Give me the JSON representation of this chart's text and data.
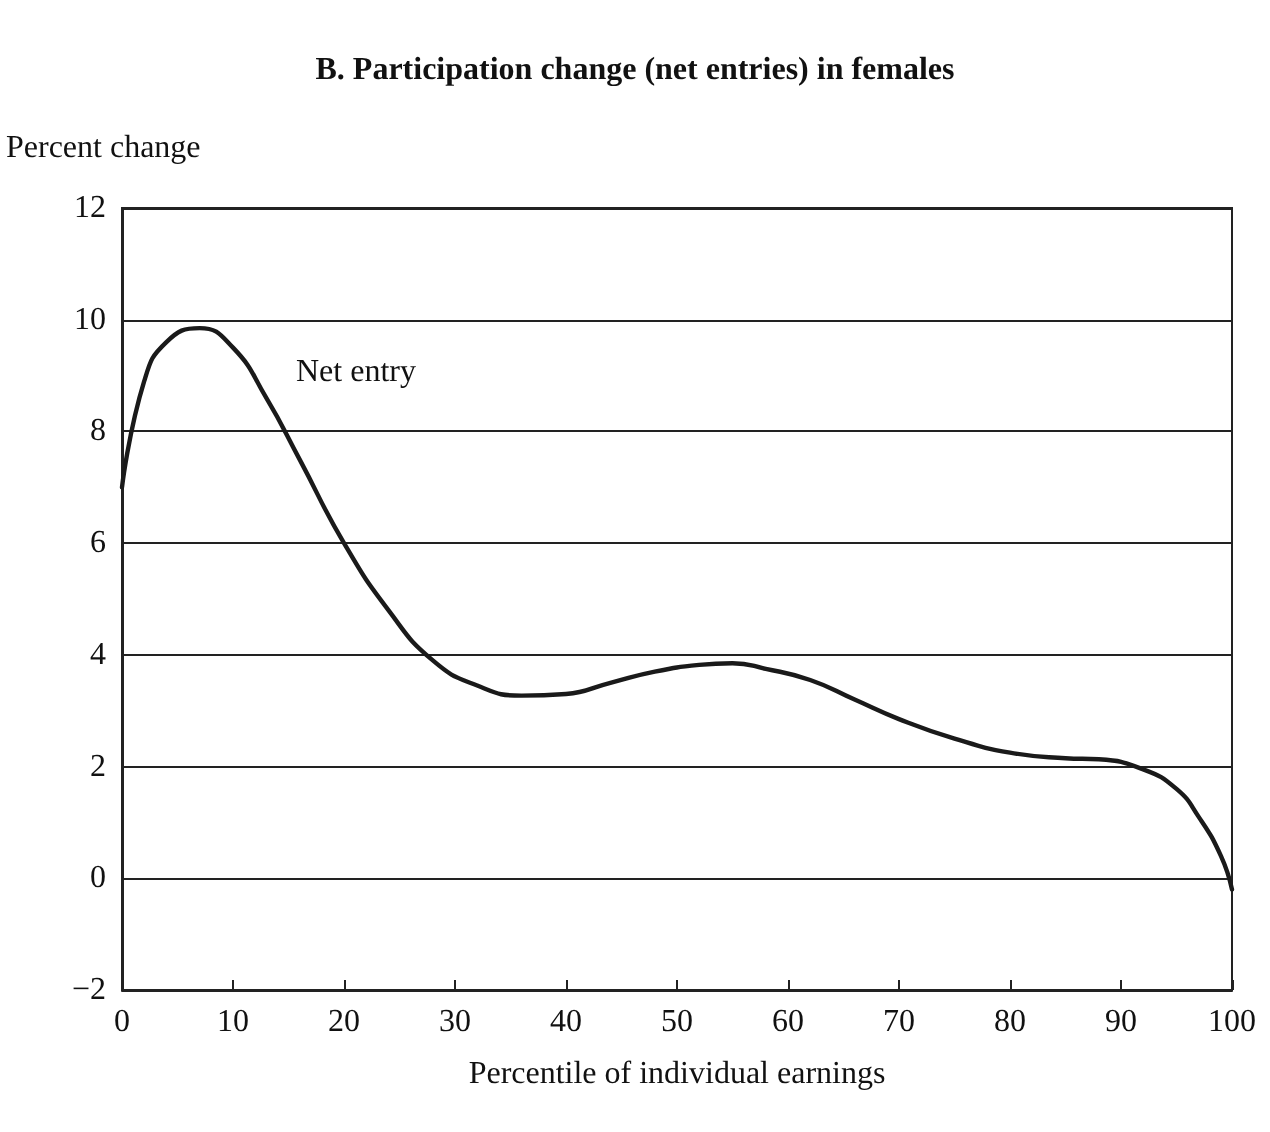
{
  "chart_data": {
    "type": "line",
    "title": "B. Participation change (net entries) in females",
    "xlabel": "Percentile of individual earnings",
    "ylabel": "Percent change",
    "series": [
      {
        "color": "#1a1a1a",
        "x": [
          0,
          2,
          4,
          7,
          10,
          13,
          16,
          20,
          24,
          28,
          32,
          36,
          40,
          44,
          48,
          52,
          55,
          58,
          62,
          66,
          70,
          75,
          80,
          85,
          88,
          92,
          95,
          97,
          99,
          100
        ],
        "values": [
          7,
          8.9,
          9.6,
          9.85,
          9.5,
          8.6,
          7.5,
          6.0,
          4.8,
          3.9,
          3.45,
          3.27,
          3.3,
          3.5,
          3.7,
          3.82,
          3.85,
          3.75,
          3.55,
          3.2,
          2.85,
          2.5,
          2.25,
          2.15,
          2.13,
          1.95,
          1.6,
          1.1,
          0.4,
          -0.2
        ]
      }
    ],
    "annotations": [
      "Net entry"
    ],
    "xlim": [
      0,
      100
    ],
    "xticks": [
      0,
      10,
      20,
      30,
      40,
      50,
      60,
      70,
      80,
      90,
      100
    ],
    "ylim": [
      -2,
      12
    ],
    "yticks": [
      -2,
      0,
      2,
      4,
      6,
      8,
      10,
      12
    ],
    "grid": "y",
    "marker": "none",
    "line_style": "solid"
  }
}
